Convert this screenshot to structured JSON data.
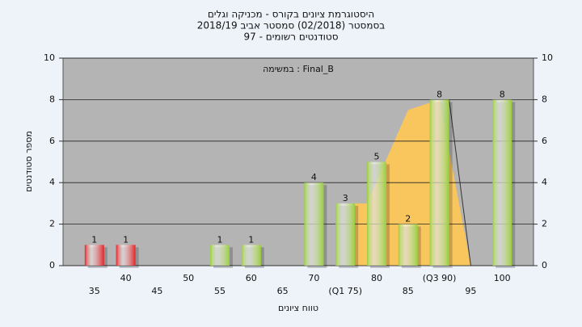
{
  "chart_data": {
    "type": "bar",
    "title": [
      "היסטוגרמת ציונים בקורס - מכניקה וגלים",
      "בסמסטר  (02/2018)  סמסטר אביב 2018/19",
      "סטודנטים רשומים - 97"
    ],
    "annotation": "במשימה : Final_B",
    "y_label": "מספר סטודנטים",
    "x_label": "טווח ציונים",
    "categories": [
      "35",
      "40",
      "45",
      "50",
      "55",
      "60",
      "65",
      "70",
      "(Q1 75)",
      "80",
      "85",
      "(Q3 90)",
      "95",
      "100"
    ],
    "values": [
      1,
      1,
      0,
      0,
      1,
      1,
      0,
      4,
      3,
      5,
      2,
      8,
      0,
      8
    ],
    "colors": [
      "#e0262a",
      "#e0262a",
      "#9acd3c",
      "#9acd3c",
      "#9acd3c",
      "#9acd3c",
      "#9acd3c",
      "#9acd3c",
      "#9acd3c",
      "#9acd3c",
      "#9acd3c",
      "#9acd3c",
      "#9acd3c",
      "#9acd3c"
    ],
    "ylim": [
      0,
      10
    ],
    "yticks": [
      0,
      2,
      4,
      6,
      8,
      10
    ],
    "y2lim": [
      0,
      10
    ],
    "y2ticks": [
      0,
      2,
      4,
      6,
      8,
      10
    ],
    "grid": true
  }
}
